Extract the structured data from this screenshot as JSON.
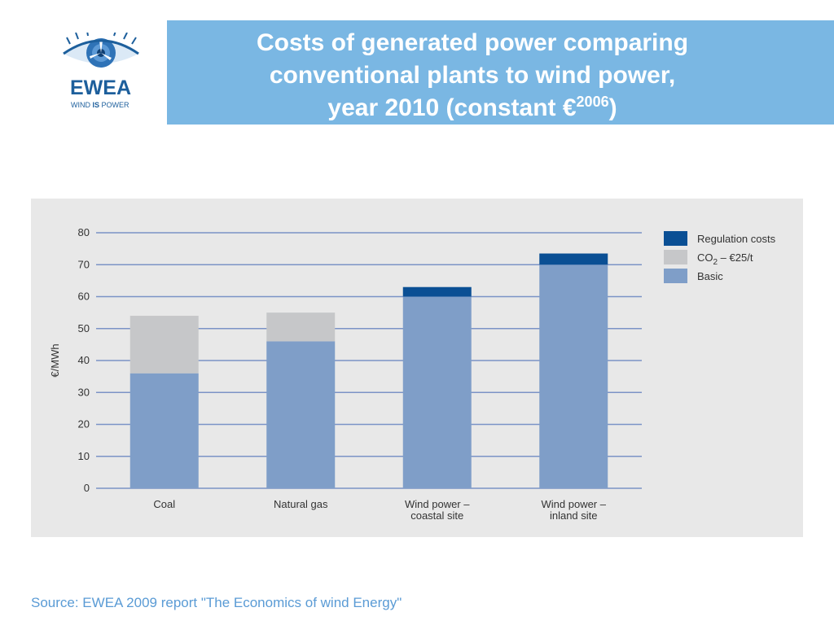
{
  "logo": {
    "name": "EWEA",
    "tagline_pre": "WIND ",
    "tagline_bold": "IS",
    "tagline_post": " POWER",
    "color": "#1d5f9c"
  },
  "header": {
    "title_line1": "Costs of generated power comparing",
    "title_line2": "conventional plants to wind power,",
    "title_line3": "year 2010 (constant €",
    "title_sup": "2006",
    "title_close": ")",
    "background": "#7ab7e3"
  },
  "source": "Source: EWEA 2009 report \"The Economics of wind Energy\"",
  "chart_data": {
    "type": "bar",
    "stacked": true,
    "ylabel": "€/MWh",
    "ylim": [
      0,
      80
    ],
    "yticks": [
      0,
      10,
      20,
      30,
      40,
      50,
      60,
      70,
      80
    ],
    "grid": true,
    "legend_position": "top-right",
    "categories": [
      [
        "Coal"
      ],
      [
        "Natural gas"
      ],
      [
        "Wind power –",
        "coastal site"
      ],
      [
        "Wind power –",
        "inland site"
      ]
    ],
    "series": [
      {
        "name": "Basic",
        "color": "#7f9ec8",
        "values": [
          36,
          46,
          60,
          70
        ]
      },
      {
        "name": "CO2 – €25/t",
        "color": "#c6c7c9",
        "values": [
          18,
          9,
          0,
          0
        ]
      },
      {
        "name": "Regulation costs",
        "color": "#0a4f94",
        "values": [
          0,
          0,
          3,
          3.5
        ]
      }
    ],
    "legend": [
      {
        "label_main": "Regulation costs",
        "label_sub": "",
        "label_post": "",
        "color": "#0a4f94"
      },
      {
        "label_main": "CO",
        "label_sub": "2",
        "label_post": " – €25/t",
        "color": "#c6c7c9"
      },
      {
        "label_main": "Basic",
        "label_sub": "",
        "label_post": "",
        "color": "#7f9ec8"
      }
    ],
    "gridline_color": "#7b93c6"
  }
}
